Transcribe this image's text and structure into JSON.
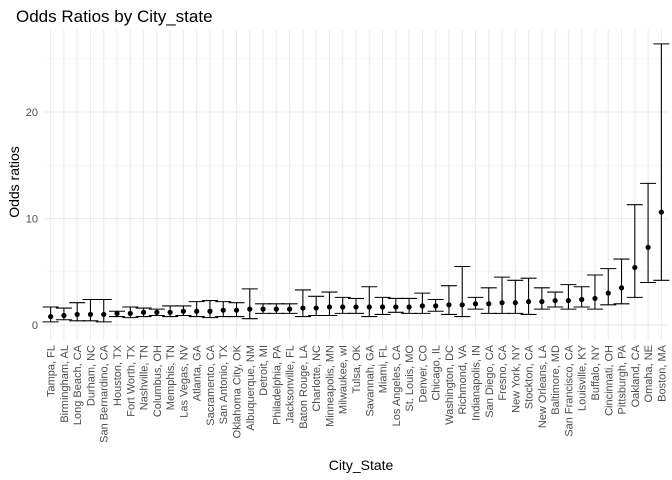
{
  "chart_data": {
    "type": "scatter",
    "title": "Odds Ratios by City_state",
    "xlabel": "City_State",
    "ylabel": "Odds ratios",
    "ylim": [
      -1.4,
      27.7
    ],
    "yticks": [
      0,
      10,
      20
    ],
    "ytick_labels": [
      "0",
      "10",
      "20"
    ],
    "grid": true,
    "legend": "none",
    "error_bars": true,
    "categories": [
      "Tampa, FL",
      "Birmingham, AL",
      "Long Beach, CA",
      "Durham, NC",
      "San Bernardino, CA",
      "Houston, TX",
      "Fort Worth, TX",
      "Nashville, TN",
      "Columbus, OH",
      "Memphis, TN",
      "Las Vegas, NV",
      "Atlanta, GA",
      "Sacramento, CA",
      "San Antonio, TX",
      "Oklahoma City, OK",
      "Albuquerque, NM",
      "Detroit, MI",
      "Philadelphia, PA",
      "Jacksonville, FL",
      "Baton Rouge, LA",
      "Charlotte, NC",
      "Minneapolis, MN",
      "Milwaukee, wI",
      "Tulsa, OK",
      "Savannah, GA",
      "Miami, FL",
      "Los Angeles, CA",
      "St. Louis, MO",
      "Denver, CO",
      "Chicago, IL",
      "Washington, DC",
      "Richmond, VA",
      "Indianapolis, IN",
      "San Diego, CA",
      "Fresno, CA",
      "New York, NY",
      "Stockton, CA",
      "New Orleans, LA",
      "Baltimore, MD",
      "San Francisco, CA",
      "Louisville, KY",
      "Buffalo, NY",
      "Cincinnati, OH",
      "Pittsburgh, PA",
      "Oakland, CA",
      "Omaha, NE",
      "Boston, MA"
    ],
    "values": [
      0.8,
      0.9,
      1.0,
      1.0,
      1.0,
      1.1,
      1.1,
      1.2,
      1.2,
      1.2,
      1.3,
      1.3,
      1.3,
      1.4,
      1.4,
      1.5,
      1.5,
      1.5,
      1.5,
      1.6,
      1.6,
      1.7,
      1.7,
      1.7,
      1.7,
      1.7,
      1.7,
      1.7,
      1.8,
      1.8,
      1.9,
      1.9,
      2.0,
      2.0,
      2.1,
      2.1,
      2.2,
      2.2,
      2.3,
      2.3,
      2.4,
      2.5,
      3.0,
      3.5,
      5.4,
      7.3,
      10.6
    ],
    "lower": [
      0.3,
      0.5,
      0.4,
      0.4,
      0.3,
      0.8,
      0.7,
      0.8,
      0.9,
      0.8,
      0.9,
      0.8,
      0.7,
      0.8,
      0.8,
      0.6,
      1.1,
      1.1,
      1.1,
      0.8,
      0.9,
      0.9,
      1.1,
      1.1,
      0.8,
      1.0,
      1.2,
      1.1,
      1.1,
      1.3,
      1.0,
      0.8,
      1.5,
      1.1,
      1.1,
      1.1,
      1.0,
      1.5,
      1.7,
      1.5,
      1.7,
      1.5,
      1.9,
      2.0,
      2.6,
      4.0,
      4.2
    ],
    "upper": [
      1.7,
      1.6,
      2.1,
      2.4,
      2.4,
      1.3,
      1.7,
      1.6,
      1.5,
      1.8,
      1.8,
      2.2,
      2.3,
      2.2,
      2.1,
      3.4,
      2.0,
      2.0,
      2.0,
      3.3,
      2.7,
      3.1,
      2.6,
      2.5,
      3.6,
      2.6,
      2.5,
      2.5,
      3.0,
      2.4,
      3.7,
      5.5,
      2.6,
      3.5,
      4.5,
      4.2,
      4.4,
      3.5,
      3.1,
      3.8,
      3.6,
      4.7,
      5.3,
      6.2,
      11.3,
      13.3,
      26.4
    ]
  }
}
